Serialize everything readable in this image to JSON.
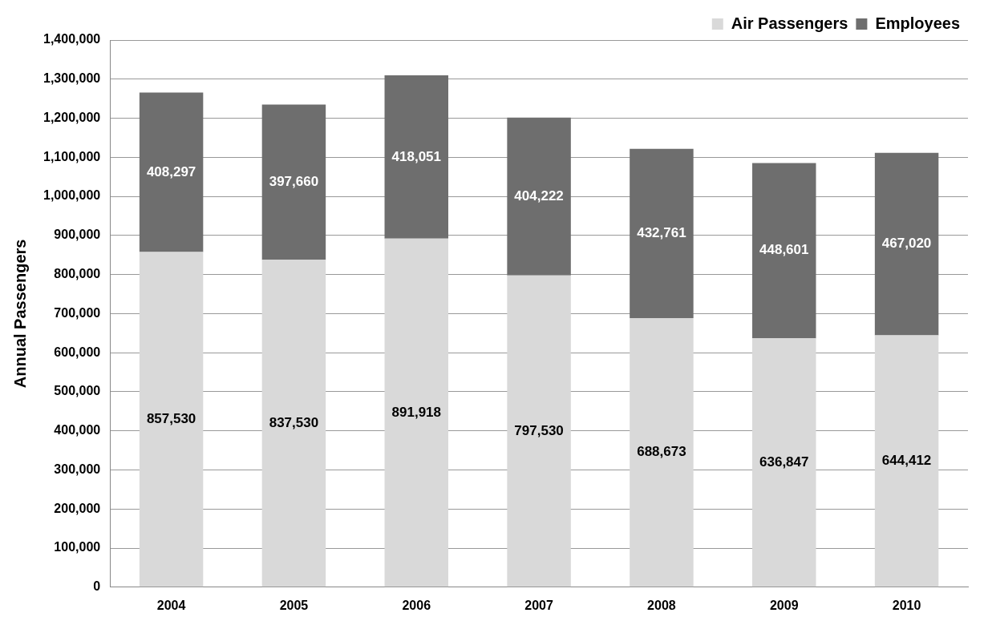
{
  "chart_data": {
    "type": "bar",
    "stacked": true,
    "ylabel": "Annual Passengers",
    "categories": [
      "2004",
      "2005",
      "2006",
      "2007",
      "2008",
      "2009",
      "2010"
    ],
    "series": [
      {
        "name": "Air Passengers",
        "color": "#d9d9d9",
        "values": [
          857530,
          837530,
          891918,
          797530,
          688673,
          636847,
          644412
        ],
        "value_labels": [
          "857,530",
          "837,530",
          "891,918",
          "797,530",
          "688,673",
          "636,847",
          "644,412"
        ]
      },
      {
        "name": "Employees",
        "color": "#6e6e6e",
        "values": [
          408297,
          397660,
          418051,
          404222,
          432761,
          448601,
          467020
        ],
        "value_labels": [
          "408,297",
          "397,660",
          "418,051",
          "404,222",
          "432,761",
          "448,601",
          "467,020"
        ]
      }
    ],
    "ylim": [
      0,
      1400000
    ],
    "yticks": [
      {
        "value": 0,
        "label": "0"
      },
      {
        "value": 100000,
        "label": "100,000"
      },
      {
        "value": 200000,
        "label": "200,000"
      },
      {
        "value": 300000,
        "label": "300,000"
      },
      {
        "value": 400000,
        "label": "400,000"
      },
      {
        "value": 500000,
        "label": "500,000"
      },
      {
        "value": 600000,
        "label": "600,000"
      },
      {
        "value": 700000,
        "label": "700,000"
      },
      {
        "value": 800000,
        "label": "800,000"
      },
      {
        "value": 900000,
        "label": "900,000"
      },
      {
        "value": 1000000,
        "label": "1,000,000"
      },
      {
        "value": 1100000,
        "label": "1,100,000"
      },
      {
        "value": 1200000,
        "label": "1,200,000"
      },
      {
        "value": 1300000,
        "label": "1,300,000"
      },
      {
        "value": 1400000,
        "label": "1,400,000"
      }
    ],
    "grid": "y",
    "legend": "top right"
  }
}
